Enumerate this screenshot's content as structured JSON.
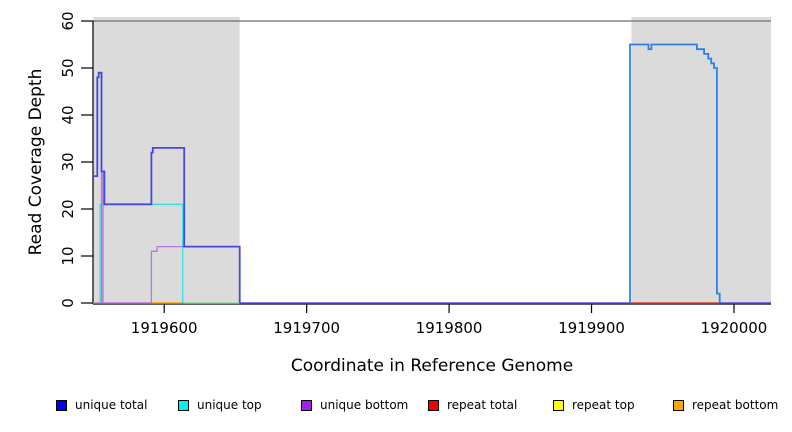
{
  "chart_data": {
    "type": "line",
    "title": "",
    "xlabel": "Coordinate in Reference Genome",
    "ylabel": "Read Coverage Depth",
    "xlim": [
      1919550,
      1920026
    ],
    "ylim": [
      0,
      60
    ],
    "x_ticks": [
      1919600,
      1919700,
      1919800,
      1919900,
      1920000
    ],
    "y_ticks": [
      0,
      10,
      20,
      30,
      40,
      50,
      60
    ],
    "grid": false,
    "top_boundary_value": 60,
    "shaded_regions": [
      {
        "name": "left-gray-region",
        "x0": 1919550,
        "x1": 1919653
      },
      {
        "name": "right-gray-region",
        "x0": 1919928,
        "x1": 1920026
      }
    ],
    "colors": {
      "shading": "#DBDBDB",
      "top_boundary": "#6E6E6E",
      "axis": "#000000"
    },
    "series": [
      {
        "name": "repeat-baseline-pink",
        "color": "#E46EC8",
        "width": 1.4,
        "points": [
          [
            1919550,
            0
          ],
          [
            1919591,
            0
          ]
        ]
      },
      {
        "name": "repeat-bottom-orange",
        "color": "#FFA400",
        "width": 1.6,
        "points": [
          [
            1919591,
            0
          ],
          [
            1919614,
            0
          ]
        ]
      },
      {
        "name": "baseline-green",
        "color": "#9ED9A4",
        "width": 1.4,
        "points": [
          [
            1919614,
            0
          ],
          [
            1919653,
            0
          ]
        ]
      },
      {
        "name": "baseline-mid-violet",
        "color": "#5A4DE8",
        "width": 1.6,
        "points": [
          [
            1919653,
            0
          ],
          [
            1919927,
            0
          ]
        ]
      },
      {
        "name": "baseline-right-violet",
        "color": "#5A4DE8",
        "width": 1.6,
        "points": [
          [
            1919990,
            0
          ],
          [
            1920026,
            0
          ]
        ]
      },
      {
        "name": "repeat-total-red",
        "color": "#E8423A",
        "width": 1.4,
        "points": [
          [
            1919927,
            0
          ],
          [
            1919990,
            0
          ]
        ]
      },
      {
        "name": "unique-top-cyan",
        "color": "#35E1E1",
        "width": 1.3,
        "points": [
          [
            1919555,
            0
          ],
          [
            1919555,
            21
          ],
          [
            1919613,
            21
          ],
          [
            1919613,
            0
          ]
        ]
      },
      {
        "name": "unique-bottom-purple",
        "color": "#B678DC",
        "width": 1.3,
        "points": [
          [
            1919556,
            0
          ],
          [
            1919556,
            28
          ],
          [
            1919557,
            28
          ],
          [
            1919557,
            0
          ],
          [
            1919591,
            0
          ],
          [
            1919591,
            11
          ],
          [
            1919595,
            11
          ],
          [
            1919595,
            12
          ],
          [
            1919653,
            12
          ],
          [
            1919653,
            0
          ]
        ]
      },
      {
        "name": "unique-total-left-blue",
        "color": "#4348DF",
        "width": 1.8,
        "points": [
          [
            1919550,
            27
          ],
          [
            1919553,
            27
          ],
          [
            1919553,
            48
          ],
          [
            1919554,
            48
          ],
          [
            1919554,
            49
          ],
          [
            1919556,
            49
          ],
          [
            1919556,
            28
          ],
          [
            1919558,
            28
          ],
          [
            1919558,
            21
          ],
          [
            1919591,
            21
          ],
          [
            1919591,
            32
          ],
          [
            1919592,
            32
          ],
          [
            1919592,
            33
          ],
          [
            1919614,
            33
          ],
          [
            1919614,
            12
          ],
          [
            1919653,
            12
          ],
          [
            1919653,
            0
          ]
        ]
      },
      {
        "name": "unique-total-right-blue",
        "color": "#2E7FE8",
        "width": 1.8,
        "points": [
          [
            1919927,
            0
          ],
          [
            1919927,
            55
          ],
          [
            1919940,
            55
          ],
          [
            1919940,
            54
          ],
          [
            1919942,
            54
          ],
          [
            1919942,
            55
          ],
          [
            1919974,
            55
          ],
          [
            1919974,
            54
          ],
          [
            1919979,
            54
          ],
          [
            1919979,
            53
          ],
          [
            1919982,
            53
          ],
          [
            1919982,
            52
          ],
          [
            1919984,
            52
          ],
          [
            1919984,
            51
          ],
          [
            1919986,
            51
          ],
          [
            1919986,
            50
          ],
          [
            1919988,
            50
          ],
          [
            1919988,
            2
          ],
          [
            1919990,
            2
          ],
          [
            1919990,
            0
          ]
        ]
      }
    ],
    "legend": [
      {
        "label": "unique total",
        "color": "#0000F0"
      },
      {
        "label": "unique top",
        "color": "#00EFEF"
      },
      {
        "label": "unique bottom",
        "color": "#A020F0"
      },
      {
        "label": "repeat total",
        "color": "#F00000"
      },
      {
        "label": "repeat top",
        "color": "#FFFF00"
      },
      {
        "label": "repeat bottom",
        "color": "#FFA500"
      }
    ],
    "legend_position": "bottom"
  }
}
